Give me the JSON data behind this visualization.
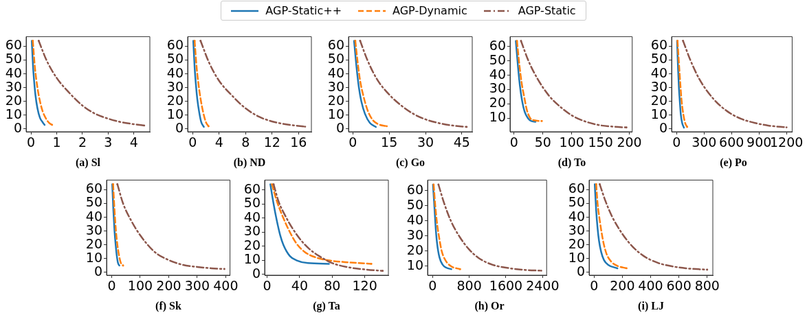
{
  "chart_data": [
    {
      "type": "line",
      "title": "(a) Sl",
      "legend": "top",
      "marker": "none",
      "grid": false,
      "xlim": [
        -0.19,
        4.62
      ],
      "xticks": [
        0,
        1,
        2,
        3,
        4
      ],
      "ylim": [
        -2,
        67
      ],
      "yticks": [
        0,
        10,
        20,
        30,
        40,
        50,
        60
      ],
      "series": [
        {
          "name": "AGP-Static++",
          "color": "#1f77b4",
          "line_style": "solid",
          "x": [
            0.03,
            0.08,
            0.12,
            0.17,
            0.25,
            0.35,
            0.45,
            0.53
          ],
          "values": [
            64,
            45,
            35,
            25,
            15,
            8,
            5,
            3
          ]
        },
        {
          "name": "AGP-Dynamic",
          "color": "#ff7f0e",
          "line_style": "dashed",
          "x": [
            0.07,
            0.15,
            0.25,
            0.35,
            0.45,
            0.6,
            0.7,
            0.82
          ],
          "values": [
            64,
            45,
            30,
            20,
            13,
            7,
            4.5,
            3
          ]
        },
        {
          "name": "AGP-Static",
          "color": "#8c564b",
          "line_style": "dashdot",
          "x": [
            0.3,
            0.6,
            1.0,
            1.5,
            2.0,
            2.5,
            3.0,
            3.5,
            4.0,
            4.4
          ],
          "values": [
            64,
            50,
            37,
            26,
            17,
            11,
            7.5,
            5,
            3.5,
            2.5
          ]
        }
      ]
    },
    {
      "type": "line",
      "title": "(b) ND",
      "marker": "none",
      "grid": false,
      "xlim": [
        -0.75,
        17.95
      ],
      "xticks": [
        0,
        4,
        8,
        12,
        16
      ],
      "ylim": [
        -2,
        67
      ],
      "yticks": [
        0,
        10,
        20,
        30,
        40,
        50,
        60
      ],
      "series": [
        {
          "color": "#1f77b4",
          "line_style": "solid",
          "x": [
            0.1,
            0.3,
            0.5,
            0.7,
            1.0,
            1.3,
            1.7
          ],
          "values": [
            64,
            45,
            32,
            22,
            12,
            5,
            1.5
          ]
        },
        {
          "color": "#ff7f0e",
          "line_style": "dashed",
          "x": [
            0.3,
            0.6,
            0.9,
            1.2,
            1.6,
            2.0,
            2.4
          ],
          "values": [
            64,
            45,
            32,
            22,
            12,
            5,
            2
          ]
        },
        {
          "color": "#8c564b",
          "line_style": "dashdot",
          "x": [
            1.2,
            2.5,
            4,
            6,
            8,
            10,
            12,
            14,
            17
          ],
          "values": [
            64,
            48,
            35,
            24,
            15,
            9,
            5.5,
            3.5,
            1.7
          ]
        }
      ]
    },
    {
      "type": "line",
      "title": "(c) Go",
      "marker": "none",
      "grid": false,
      "xlim": [
        -1.8,
        49.3
      ],
      "xticks": [
        0,
        15,
        30,
        45
      ],
      "ylim": [
        -2,
        67
      ],
      "yticks": [
        0,
        10,
        20,
        30,
        40,
        50,
        60
      ],
      "series": [
        {
          "color": "#1f77b4",
          "line_style": "solid",
          "x": [
            0.5,
            1.5,
            2.5,
            3.5,
            5,
            7,
            9.5
          ],
          "values": [
            64,
            45,
            30,
            20,
            11,
            4.5,
            1.5
          ]
        },
        {
          "color": "#ff7f0e",
          "line_style": "dashed",
          "x": [
            1,
            2,
            3,
            4.5,
            6,
            8,
            10.5,
            14
          ],
          "values": [
            64,
            48,
            35,
            23,
            14,
            7,
            3.5,
            2
          ]
        },
        {
          "color": "#8c564b",
          "line_style": "dashdot",
          "x": [
            3,
            6,
            10,
            15,
            20,
            25,
            30,
            35,
            40,
            47
          ],
          "values": [
            64,
            50,
            36,
            25,
            17,
            11,
            7,
            4.5,
            2.8,
            1.5
          ]
        }
      ]
    },
    {
      "type": "line",
      "title": "(d) To",
      "marker": "none",
      "grid": false,
      "xlim": [
        -7,
        205
      ],
      "xticks": [
        0,
        50,
        100,
        150,
        200
      ],
      "ylim": [
        0.5,
        67
      ],
      "yticks": [
        10,
        20,
        30,
        40,
        50,
        60
      ],
      "series": [
        {
          "color": "#1f77b4",
          "line_style": "solid",
          "x": [
            3,
            7,
            10,
            14,
            18,
            24,
            30,
            37
          ],
          "values": [
            64,
            45,
            33,
            22,
            15,
            10,
            8,
            7.5
          ]
        },
        {
          "color": "#ff7f0e",
          "line_style": "dashed",
          "x": [
            5,
            9,
            13,
            18,
            22,
            28,
            35,
            48
          ],
          "values": [
            64,
            48,
            35,
            24,
            16,
            10,
            8.5,
            8
          ]
        },
        {
          "color": "#8c564b",
          "line_style": "dashdot",
          "x": [
            12,
            25,
            40,
            60,
            80,
            100,
            125,
            150,
            175,
            195
          ],
          "values": [
            64,
            50,
            38,
            26,
            18,
            12,
            7.5,
            5,
            4,
            3.5
          ]
        }
      ]
    },
    {
      "type": "line",
      "title": "(e) Po",
      "marker": "none",
      "grid": false,
      "xlim": [
        -55,
        1262
      ],
      "xticks": [
        0,
        300,
        600,
        900,
        1200
      ],
      "ylim": [
        -2,
        67
      ],
      "yticks": [
        0,
        10,
        20,
        30,
        40,
        50,
        60
      ],
      "series": [
        {
          "color": "#1f77b4",
          "line_style": "solid",
          "x": [
            5,
            15,
            25,
            35,
            45,
            60,
            80
          ],
          "values": [
            64,
            45,
            30,
            20,
            11,
            4.5,
            1
          ]
        },
        {
          "color": "#ff7f0e",
          "line_style": "dashed",
          "x": [
            10,
            25,
            40,
            55,
            75,
            95,
            115
          ],
          "values": [
            64,
            48,
            33,
            20,
            10,
            4,
            1.5
          ]
        },
        {
          "color": "#8c564b",
          "line_style": "dashdot",
          "x": [
            70,
            150,
            250,
            400,
            550,
            700,
            850,
            1000,
            1200
          ],
          "values": [
            64,
            50,
            36,
            22,
            13,
            7.5,
            4.5,
            2.5,
            1.2
          ]
        }
      ]
    },
    {
      "type": "line",
      "title": "(f) Sk",
      "marker": "none",
      "grid": false,
      "xlim": [
        -18,
        415
      ],
      "xticks": [
        0,
        100,
        200,
        300,
        400
      ],
      "ylim": [
        -2,
        67
      ],
      "yticks": [
        0,
        10,
        20,
        30,
        40,
        50,
        60
      ],
      "series": [
        {
          "color": "#1f77b4",
          "line_style": "solid",
          "x": [
            2,
            6,
            10,
            14,
            18,
            22,
            27
          ],
          "values": [
            64,
            45,
            30,
            20,
            12,
            7,
            5
          ]
        },
        {
          "color": "#ff7f0e",
          "line_style": "dashed",
          "x": [
            5,
            10,
            15,
            20,
            26,
            32,
            40
          ],
          "values": [
            64,
            45,
            30,
            20,
            12,
            7,
            5
          ]
        },
        {
          "color": "#8c564b",
          "line_style": "dashdot",
          "x": [
            20,
            40,
            70,
            100,
            150,
            200,
            250,
            300,
            350,
            395
          ],
          "values": [
            64,
            50,
            37,
            27,
            15,
            9,
            5.5,
            4,
            3,
            2.5
          ]
        }
      ]
    },
    {
      "type": "line",
      "title": "(g) Ta",
      "marker": "none",
      "grid": false,
      "xlim": [
        -3,
        149
      ],
      "xticks": [
        0,
        40,
        80,
        120
      ],
      "ylim": [
        -0.6,
        67
      ],
      "yticks": [
        0,
        10,
        20,
        30,
        40,
        50,
        60
      ],
      "series": [
        {
          "color": "#1f77b4",
          "line_style": "solid",
          "x": [
            4,
            8,
            12,
            16,
            20,
            28,
            36,
            50,
            76
          ],
          "values": [
            64,
            50,
            38,
            28,
            21,
            13,
            10,
            8,
            7.5
          ]
        },
        {
          "color": "#ff7f0e",
          "line_style": "dashed",
          "x": [
            6,
            12,
            20,
            28,
            36,
            46,
            60,
            75,
            100,
            128
          ],
          "values": [
            64,
            52,
            40,
            30,
            22,
            16,
            12,
            10,
            8.5,
            7.5
          ]
        },
        {
          "color": "#8c564b",
          "line_style": "dashdot",
          "x": [
            8,
            14,
            22,
            32,
            42,
            52,
            64,
            80,
            100,
            120,
            142
          ],
          "values": [
            64,
            52,
            42,
            32,
            24,
            18,
            13,
            8,
            5,
            3.5,
            2.5
          ]
        }
      ]
    },
    {
      "type": "line",
      "title": "(h) Or",
      "marker": "none",
      "grid": false,
      "xlim": [
        -108,
        2488
      ],
      "xticks": [
        0,
        800,
        1600,
        2400
      ],
      "ylim": [
        4,
        67
      ],
      "yticks": [
        10,
        20,
        30,
        40,
        50,
        60
      ],
      "series": [
        {
          "color": "#1f77b4",
          "line_style": "solid",
          "x": [
            10,
            40,
            70,
            100,
            150,
            220,
            300,
            410
          ],
          "values": [
            64,
            50,
            35,
            25,
            16,
            11,
            9,
            8
          ]
        },
        {
          "color": "#ff7f0e",
          "line_style": "dashed",
          "x": [
            25,
            60,
            100,
            150,
            200,
            280,
            400,
            600
          ],
          "values": [
            64,
            50,
            38,
            28,
            20,
            14,
            10,
            8
          ]
        },
        {
          "color": "#8c564b",
          "line_style": "dashdot",
          "x": [
            130,
            250,
            400,
            600,
            800,
            1000,
            1300,
            1600,
            2000,
            2370
          ],
          "values": [
            64,
            52,
            40,
            29,
            21,
            15.5,
            11,
            9,
            7.5,
            7
          ]
        }
      ]
    },
    {
      "type": "line",
      "title": "(i) LJ",
      "marker": "none",
      "grid": false,
      "xlim": [
        -35,
        840
      ],
      "xticks": [
        0,
        200,
        400,
        600,
        800
      ],
      "ylim": [
        -2,
        67
      ],
      "yticks": [
        0,
        10,
        20,
        30,
        40,
        50,
        60
      ],
      "series": [
        {
          "color": "#1f77b4",
          "line_style": "solid",
          "x": [
            5,
            15,
            25,
            35,
            50,
            70,
            100,
            165
          ],
          "values": [
            64,
            45,
            32,
            23,
            15,
            9,
            5.5,
            3
          ]
        },
        {
          "color": "#ff7f0e",
          "line_style": "dashed",
          "x": [
            15,
            25,
            40,
            55,
            70,
            90,
            120,
            160,
            230
          ],
          "values": [
            64,
            50,
            38,
            28,
            20,
            13,
            8,
            5,
            3
          ]
        },
        {
          "color": "#8c564b",
          "line_style": "dashdot",
          "x": [
            40,
            80,
            130,
            200,
            270,
            350,
            450,
            550,
            650,
            800
          ],
          "values": [
            64,
            52,
            40,
            28,
            19,
            12,
            7,
            4.5,
            3,
            2
          ]
        }
      ]
    }
  ]
}
